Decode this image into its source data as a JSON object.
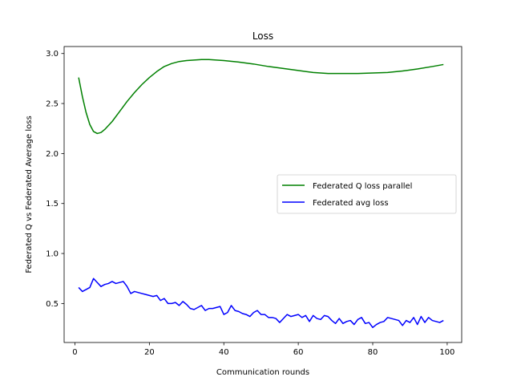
{
  "chart_data": {
    "type": "line",
    "title": "Loss",
    "xlabel": "Communication rounds",
    "ylabel": "Federated Q vs Federated Average loss",
    "xlim": [
      -2.9,
      103.9
    ],
    "ylim": [
      0.11,
      3.07
    ],
    "xticks": [
      0,
      20,
      40,
      60,
      80,
      100
    ],
    "yticks": [
      0.5,
      1.0,
      1.5,
      2.0,
      2.5,
      3.0
    ],
    "xtick_labels": [
      "0",
      "20",
      "40",
      "60",
      "80",
      "100"
    ],
    "ytick_labels": [
      "0.5",
      "1.0",
      "1.5",
      "2.0",
      "2.5",
      "3.0"
    ],
    "grid": false,
    "legend_position": "center-right",
    "series": [
      {
        "name": "Federated Q loss parallel",
        "color": "#008000",
        "x": [
          1,
          2,
          3,
          4,
          5,
          6,
          7,
          8,
          9,
          10,
          12,
          14,
          16,
          18,
          20,
          22,
          24,
          26,
          28,
          30,
          32,
          34,
          36,
          38,
          40,
          44,
          48,
          52,
          56,
          60,
          64,
          68,
          72,
          76,
          80,
          84,
          88,
          92,
          96,
          99
        ],
        "y": [
          2.76,
          2.57,
          2.41,
          2.29,
          2.22,
          2.2,
          2.21,
          2.24,
          2.28,
          2.32,
          2.42,
          2.52,
          2.61,
          2.69,
          2.76,
          2.82,
          2.87,
          2.9,
          2.92,
          2.93,
          2.935,
          2.94,
          2.94,
          2.935,
          2.93,
          2.915,
          2.895,
          2.87,
          2.85,
          2.83,
          2.81,
          2.8,
          2.8,
          2.8,
          2.805,
          2.81,
          2.825,
          2.845,
          2.87,
          2.89
        ]
      },
      {
        "name": "Federated avg loss",
        "color": "#0000ff",
        "x": [
          1,
          2,
          3,
          4,
          5,
          6,
          7,
          8,
          9,
          10,
          11,
          12,
          13,
          14,
          15,
          16,
          17,
          18,
          19,
          20,
          21,
          22,
          23,
          24,
          25,
          26,
          27,
          28,
          29,
          30,
          31,
          32,
          33,
          34,
          35,
          36,
          37,
          38,
          39,
          40,
          41,
          42,
          43,
          44,
          45,
          46,
          47,
          48,
          49,
          50,
          51,
          52,
          53,
          54,
          55,
          56,
          57,
          58,
          59,
          60,
          61,
          62,
          63,
          64,
          65,
          66,
          67,
          68,
          69,
          70,
          71,
          72,
          73,
          74,
          75,
          76,
          77,
          78,
          79,
          80,
          81,
          82,
          83,
          84,
          85,
          86,
          87,
          88,
          89,
          90,
          91,
          92,
          93,
          94,
          95,
          96,
          97,
          98,
          99
        ],
        "y": [
          0.66,
          0.62,
          0.64,
          0.66,
          0.75,
          0.71,
          0.67,
          0.69,
          0.7,
          0.72,
          0.7,
          0.71,
          0.72,
          0.67,
          0.6,
          0.62,
          0.61,
          0.6,
          0.59,
          0.58,
          0.57,
          0.58,
          0.53,
          0.55,
          0.5,
          0.5,
          0.51,
          0.48,
          0.52,
          0.49,
          0.45,
          0.44,
          0.46,
          0.48,
          0.43,
          0.45,
          0.45,
          0.46,
          0.47,
          0.39,
          0.41,
          0.48,
          0.43,
          0.42,
          0.4,
          0.39,
          0.37,
          0.41,
          0.43,
          0.39,
          0.39,
          0.36,
          0.36,
          0.35,
          0.31,
          0.35,
          0.39,
          0.37,
          0.38,
          0.39,
          0.36,
          0.38,
          0.32,
          0.38,
          0.35,
          0.34,
          0.38,
          0.37,
          0.33,
          0.3,
          0.35,
          0.3,
          0.32,
          0.33,
          0.29,
          0.34,
          0.36,
          0.3,
          0.31,
          0.26,
          0.29,
          0.31,
          0.32,
          0.36,
          0.35,
          0.34,
          0.33,
          0.28,
          0.33,
          0.31,
          0.36,
          0.29,
          0.37,
          0.31,
          0.36,
          0.33,
          0.32,
          0.31,
          0.33
        ]
      }
    ]
  }
}
